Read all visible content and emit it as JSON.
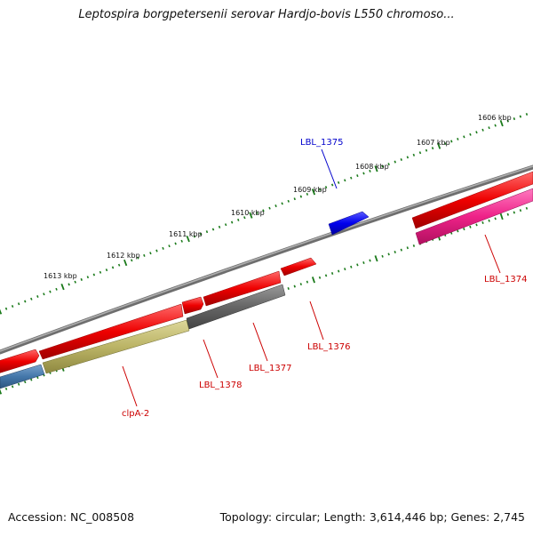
{
  "title": "Leptospira borgpetersenii serovar Hardjo-bovis L550 chromoso...",
  "footer": {
    "accession": "Accession: NC_008508",
    "summary": "Topology: circular; Length: 3,614,446 bp; Genes: 2,745"
  },
  "scale_labels": [
    "1606 kbp",
    "1607 kbp",
    "1608 kbp",
    "1609 kbp",
    "1610 kbp",
    "1611 kbp",
    "1612 kbp",
    "1613 kbp"
  ],
  "gene_labels": {
    "lbl_1375": "LBL_1375",
    "lbl_1374": "LBL_1374",
    "lbl_1376": "LBL_1376",
    "lbl_1377": "LBL_1377",
    "lbl_1378": "LBL_1378",
    "clpa2": "clpA-2"
  },
  "colors": {
    "backbone": "#808080",
    "tick": "#1a7a1a",
    "gene_red": "#ee0000",
    "gene_blue": "#0000ee",
    "gene_pink": "#ee2288",
    "gene_gray": "#666666",
    "gene_olive": "#bbb466",
    "gene_steel": "#4477aa",
    "label_red": "#cc0000",
    "label_blue": "#0000cc"
  }
}
